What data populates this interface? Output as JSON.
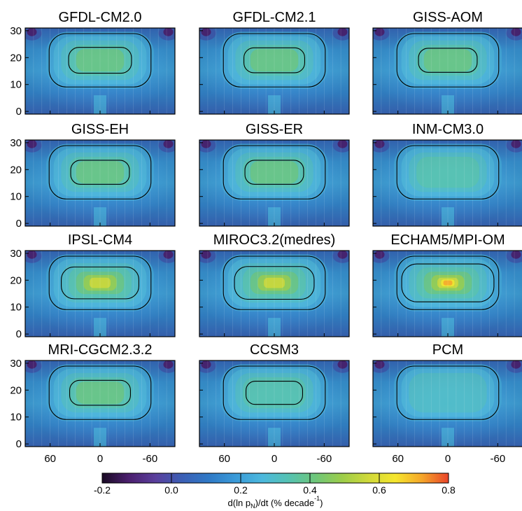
{
  "chart_data": {
    "type": "heatmap",
    "panels": [
      {
        "title": "GFDL-CM2.0",
        "peak": 0.44,
        "inner_contour": true
      },
      {
        "title": "GFDL-CM2.1",
        "peak": 0.42,
        "inner_contour": true
      },
      {
        "title": "GISS-AOM",
        "peak": 0.4,
        "inner_contour": true
      },
      {
        "title": "GISS-EH",
        "peak": 0.4,
        "inner_contour": true
      },
      {
        "title": "GISS-ER",
        "peak": 0.4,
        "inner_contour": true
      },
      {
        "title": "INM-CM3.0",
        "peak": 0.36,
        "inner_contour": false
      },
      {
        "title": "IPSL-CM4",
        "peak": 0.58,
        "inner_contour": true
      },
      {
        "title": "MIROC3.2(medres)",
        "peak": 0.6,
        "inner_contour": true
      },
      {
        "title": "ECHAM5/MPI-OM",
        "peak": 0.72,
        "inner_contour": true
      },
      {
        "title": "MRI-CGCM2.3.2",
        "peak": 0.42,
        "inner_contour": true
      },
      {
        "title": "CCSM3",
        "peak": 0.38,
        "inner_contour": true
      },
      {
        "title": "PCM",
        "peak": 0.32,
        "inner_contour": false
      }
    ],
    "x_ticks": [
      "60",
      "0",
      "-60"
    ],
    "x_tick_values": [
      60,
      0,
      -60
    ],
    "xlim": [
      90,
      -90
    ],
    "y_ticks": [
      "0",
      "10",
      "20",
      "30"
    ],
    "y_tick_values": [
      0,
      10,
      20,
      30
    ],
    "ylim": [
      -1,
      31
    ],
    "colorbar": {
      "ticks": [
        "-0.2",
        "0.0",
        "0.2",
        "0.4",
        "0.6",
        "0.8"
      ],
      "tick_values": [
        -0.2,
        0.0,
        0.2,
        0.4,
        0.6,
        0.8
      ],
      "range": [
        -0.2,
        0.8
      ],
      "label_main": "d(ln p",
      "label_sub": "N",
      "label_after": ")/dt (% decade",
      "label_sup": "-1",
      "label_end": ")",
      "colors": [
        "#1a0a24",
        "#4b1f6e",
        "#5a3f9c",
        "#3b5fb5",
        "#2f79c6",
        "#3a9ad8",
        "#4cb8dd",
        "#55c2b2",
        "#6ec67a",
        "#9ccd4a",
        "#d0d93a",
        "#f5e62e",
        "#f5a62a",
        "#e9442a"
      ]
    }
  }
}
